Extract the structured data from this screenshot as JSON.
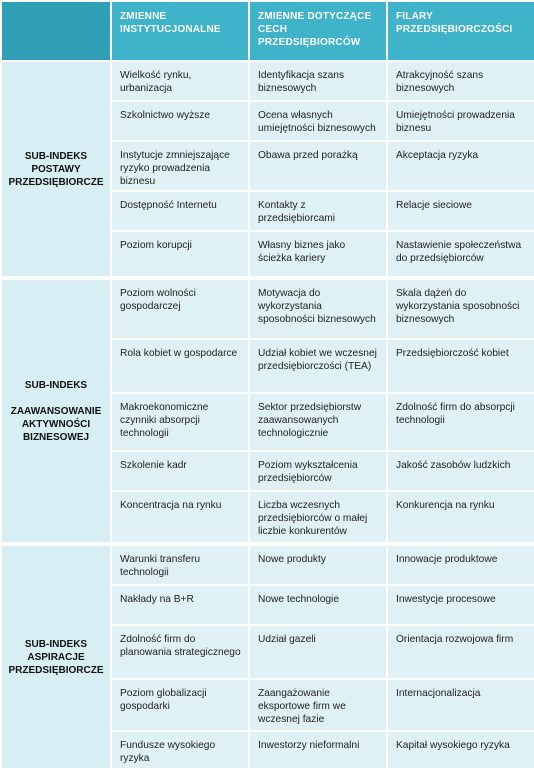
{
  "header": {
    "corner": "",
    "col1": "ZMIENNE INSTYTUCJONALNE",
    "col2": "ZMIENNE DOTYCZĄCE CECH PRZEDSIĘBIORCÓW",
    "col3": "FILARY PRZEDSIĘBIORCZOŚCI"
  },
  "groups": [
    {
      "label_lines": [
        "SUB-INDEKS",
        "POSTAWY",
        "PRZEDSIĘBIORCZE"
      ],
      "rows": [
        [
          "Wielkość rynku, urbanizacja",
          "Identyfikacja szans biznesowych",
          "Atrakcyjność szans biznesowych"
        ],
        [
          "Szkolnictwo wyższe",
          "Ocena własnych umiejętności biznesowych",
          "Umiejętności prowadzenia biznesu"
        ],
        [
          "Instytucje zmniejszające ryzyko prowadzenia biznesu",
          "Obawa przed porażką",
          "Akceptacja ryzyka"
        ],
        [
          "Dostępność Internetu",
          "Kontakty z przedsiębiorcami",
          "Relacje sieciowe"
        ],
        [
          "Poziom korupcji",
          "Własny biznes jako ścieżka kariery",
          "Nastawienie społeczeństwa do przedsiębiorców"
        ]
      ]
    },
    {
      "label_lines": [
        "SUB-INDEKS",
        "",
        "ZAAWANSOWANIE",
        "AKTYWNOŚCI",
        "BIZNESOWEJ"
      ],
      "rows": [
        [
          "Poziom wolności gospodarczej",
          "Motywacja do wykorzystania sposobności biznesowych",
          "Skala dążeń do wykorzystania sposobności biznesowych"
        ],
        [
          "Rola kobiet w gospodarce",
          "Udział kobiet we wczesnej przedsiębiorczości (TEA)",
          "Przedsiębiorczość kobiet"
        ],
        [
          "Makroekonomiczne czynniki absorpcji technologii",
          "Sektor przedsiębiorstw zaawansowanych technologicznie",
          "Zdolność firm do absorpcji technologii"
        ],
        [
          "Szkolenie kadr",
          "Poziom wykształcenia przedsiębiorców",
          "Jakość zasobów ludzkich"
        ],
        [
          "Koncentracja na rynku",
          "Liczba wczesnych przedsiębiorców o małej liczbie konkurentów",
          "Konkurencja na rynku"
        ]
      ]
    },
    {
      "label_lines": [
        "SUB-INDEKS",
        "ASPIRACJE",
        "PRZEDSIĘBIORCZE"
      ],
      "rows": [
        [
          "Warunki transferu technologii",
          "Nowe produkty",
          "Innowacje produktowe"
        ],
        [
          "Nakłady na B+R",
          "Nowe technologie",
          "Inwestycje procesowe"
        ],
        [
          "Zdolność firm do planowania strategicznego",
          "Udział gazeli",
          "Orientacja rozwojowa firm"
        ],
        [
          "Poziom globalizacji gospodarki",
          "Zaangażowanie eksportowe firm we wczesnej fazie",
          "Internacjonalizacja"
        ],
        [
          "Fundusze wysokiego ryzyka",
          "Inwestorzy nieformalni",
          "Kapitał wysokiego ryzyka"
        ]
      ]
    }
  ]
}
